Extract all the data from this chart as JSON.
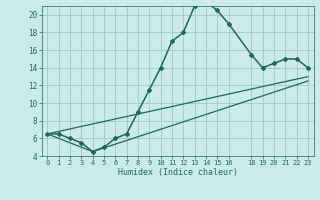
{
  "title": "",
  "xlabel": "Humidex (Indice chaleur)",
  "bg_color": "#cceae7",
  "grid_color": "#aacccc",
  "line_color": "#1a6b5a",
  "xlim": [
    -0.5,
    23.5
  ],
  "ylim": [
    4,
    21
  ],
  "xticks": [
    0,
    1,
    2,
    3,
    4,
    5,
    6,
    7,
    8,
    9,
    10,
    11,
    12,
    13,
    14,
    15,
    16,
    18,
    19,
    20,
    21,
    22,
    23
  ],
  "yticks": [
    4,
    6,
    8,
    10,
    12,
    14,
    16,
    18,
    20
  ],
  "curve1_x": [
    0,
    1,
    2,
    3,
    4,
    5,
    6,
    7,
    8,
    9,
    10,
    11,
    12,
    13,
    14,
    15,
    16,
    18,
    19,
    20,
    21,
    22,
    23
  ],
  "curve1_y": [
    6.5,
    6.5,
    6.0,
    5.5,
    4.5,
    5.0,
    6.0,
    6.5,
    9.0,
    11.5,
    14.0,
    17.0,
    18.0,
    21.0,
    21.5,
    20.5,
    19.0,
    15.5,
    14.0,
    14.5,
    15.0,
    15.0,
    14.0
  ],
  "curve2_x": [
    0,
    4,
    23
  ],
  "curve2_y": [
    6.5,
    4.5,
    12.5
  ],
  "curve3_x": [
    0,
    23
  ],
  "curve3_y": [
    6.5,
    13.0
  ]
}
